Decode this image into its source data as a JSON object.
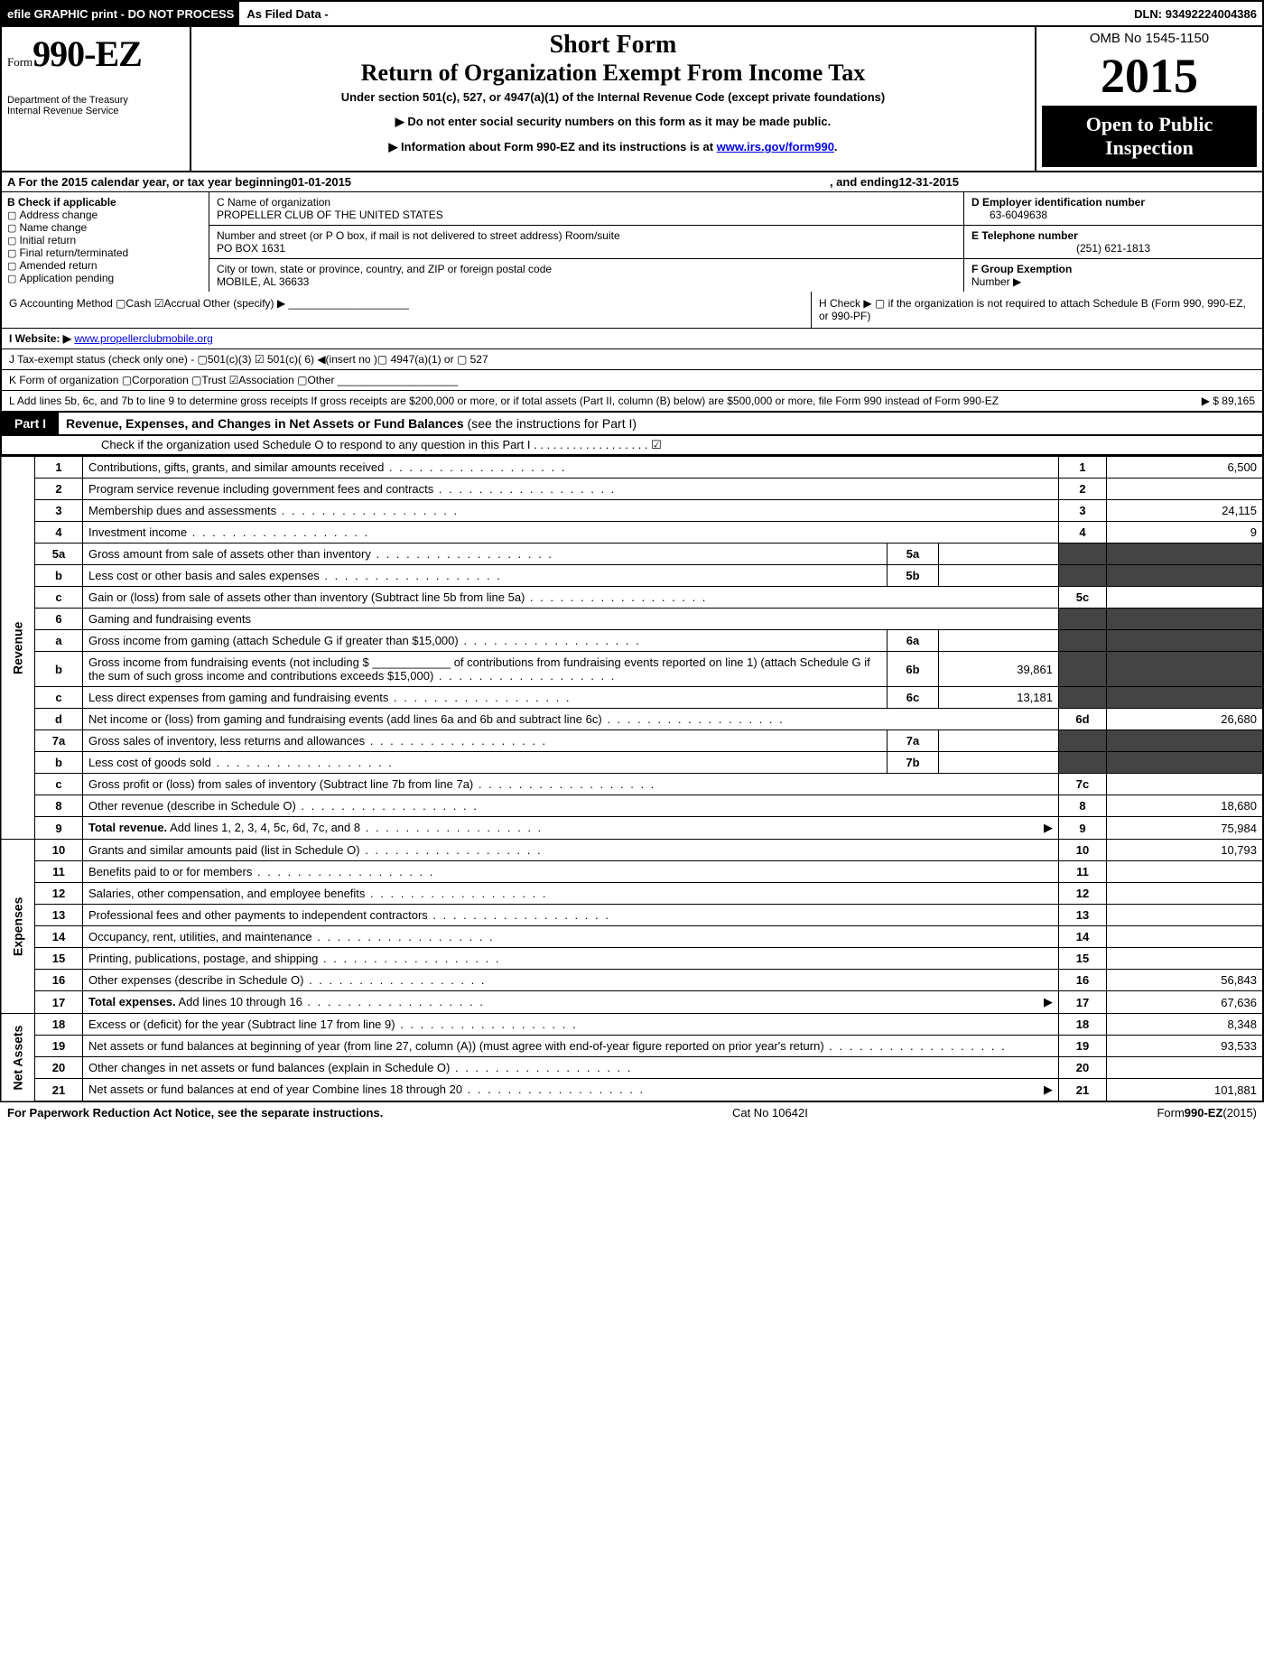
{
  "topbar": {
    "efile": "efile GRAPHIC print - DO NOT PROCESS",
    "asfiled": "As Filed Data -",
    "dln_label": "DLN:",
    "dln": "93492224004386"
  },
  "header": {
    "formword": "Form",
    "formnum": "990-EZ",
    "dept1": "Department of the Treasury",
    "dept2": "Internal Revenue Service",
    "shortform": "Short Form",
    "returnof": "Return of Organization Exempt From Income Tax",
    "under": "Under section 501(c), 527, or 4947(a)(1) of the Internal Revenue Code (except private foundations)",
    "arrow1": "▶ Do not enter social security numbers on this form as it may be made public.",
    "arrow2_pre": "▶ Information about Form 990-EZ and its instructions is at ",
    "arrow2_link": "www.irs.gov/form990",
    "arrow2_post": ".",
    "omb": "OMB No 1545-1150",
    "year": "2015",
    "open1": "Open to Public",
    "open2": "Inspection"
  },
  "rowA": {
    "pre": "A  For the 2015 calendar year, or tax year beginning ",
    "begin": "01-01-2015",
    "mid": ", and ending ",
    "end": "12-31-2015"
  },
  "colB": {
    "title": "B  Check if applicable",
    "items": [
      "Address change",
      "Name change",
      "Initial return",
      "Final return/terminated",
      "Amended return",
      "Application pending"
    ]
  },
  "colC": {
    "c_label": "C Name of organization",
    "c_value": "PROPELLER CLUB OF THE UNITED STATES",
    "street_label": "Number and street (or P O box, if mail is not delivered to street address) Room/suite",
    "street_value": "PO BOX 1631",
    "city_label": "City or town, state or province, country, and ZIP or foreign postal code",
    "city_value": "MOBILE, AL 36633"
  },
  "colDEF": {
    "d_label": "D Employer identification number",
    "d_value": "63-6049638",
    "e_label": "E Telephone number",
    "e_value": "(251) 621-1813",
    "f_label": "F Group Exemption",
    "f_label2": "Number   ▶"
  },
  "rowG": "G Accounting Method   ▢Cash  ☑Accrual  Other (specify) ▶ ____________________",
  "rowH": "H  Check ▶ ▢ if the organization is not required to attach Schedule B (Form 990, 990-EZ, or 990-PF)",
  "rowI_pre": "I Website: ▶ ",
  "rowI_link": "www.propellerclubmobile.org",
  "rowJ": "J Tax-exempt status (check only one) - ▢501(c)(3) ☑ 501(c)( 6) ◀(insert no )▢ 4947(a)(1) or ▢ 527",
  "rowK": "K Form of organization   ▢Corporation  ▢Trust  ☑Association  ▢Other  ____________________",
  "rowL_text": "L Add lines 5b, 6c, and 7b to line 9 to determine gross receipts  If gross receipts are $200,000 or more, or if total assets (Part II, column (B) below) are $500,000 or more, file Form 990 instead of Form 990-EZ",
  "rowL_amt": "▶ $ 89,165",
  "part1": {
    "label": "Part I",
    "title": "Revenue, Expenses, and Changes in Net Assets or Fund Balances",
    "note": " (see the instructions for Part I)",
    "schO": "Check if the organization used Schedule O to respond to any question in this Part I  . . . . . . . . . . . . . . . . . .  ☑"
  },
  "sections": {
    "revenue": "Revenue",
    "expenses": "Expenses",
    "netassets": "Net Assets"
  },
  "lines": {
    "l1": {
      "n": "1",
      "t": "Contributions, gifts, grants, and similar amounts received",
      "r": "1",
      "v": "6,500"
    },
    "l2": {
      "n": "2",
      "t": "Program service revenue including government fees and contracts",
      "r": "2",
      "v": ""
    },
    "l3": {
      "n": "3",
      "t": "Membership dues and assessments",
      "r": "3",
      "v": "24,115"
    },
    "l4": {
      "n": "4",
      "t": "Investment income",
      "r": "4",
      "v": "9"
    },
    "l5a": {
      "n": "5a",
      "t": "Gross amount from sale of assets other than inventory",
      "s": "5a",
      "sv": "",
      "shadeR": true
    },
    "l5b": {
      "n": "b",
      "t": "Less  cost or other basis and sales expenses",
      "s": "5b",
      "sv": "",
      "shadeR": true
    },
    "l5c": {
      "n": "c",
      "t": "Gain or (loss) from sale of assets other than inventory (Subtract line 5b from line 5a)",
      "r": "5c",
      "v": ""
    },
    "l6": {
      "n": "6",
      "t": "Gaming and fundraising events",
      "shadeR": true
    },
    "l6a": {
      "n": "a",
      "t": "Gross income from gaming (attach Schedule G if greater than $15,000)",
      "s": "6a",
      "sv": "",
      "shadeR": true
    },
    "l6b": {
      "n": "b",
      "t": "Gross income from fundraising events (not including $ ____________ of contributions from fundraising events reported on line 1) (attach Schedule G if the sum of such gross income and contributions exceeds $15,000)",
      "s": "6b",
      "sv": "39,861",
      "shadeR": true
    },
    "l6c": {
      "n": "c",
      "t": "Less  direct expenses from gaming and fundraising events",
      "s": "6c",
      "sv": "13,181",
      "shadeR": true
    },
    "l6d": {
      "n": "d",
      "t": "Net income or (loss) from gaming and fundraising events (add lines 6a and 6b and subtract line 6c)",
      "r": "6d",
      "v": "26,680"
    },
    "l7a": {
      "n": "7a",
      "t": "Gross sales of inventory, less returns and allowances",
      "s": "7a",
      "sv": "",
      "shadeR": true
    },
    "l7b": {
      "n": "b",
      "t": "Less  cost of goods sold",
      "s": "7b",
      "sv": "",
      "shadeR": true
    },
    "l7c": {
      "n": "c",
      "t": "Gross profit or (loss) from sales of inventory (Subtract line 7b from line 7a)",
      "r": "7c",
      "v": ""
    },
    "l8": {
      "n": "8",
      "t": "Other revenue (describe in Schedule O)",
      "r": "8",
      "v": "18,680"
    },
    "l9": {
      "n": "9",
      "t": "Total revenue. Add lines 1, 2, 3, 4, 5c, 6d, 7c, and 8",
      "tri": true,
      "r": "9",
      "v": "75,984",
      "bold": true
    },
    "l10": {
      "n": "10",
      "t": "Grants and similar amounts paid (list in Schedule O)",
      "r": "10",
      "v": "10,793"
    },
    "l11": {
      "n": "11",
      "t": "Benefits paid to or for members",
      "r": "11",
      "v": ""
    },
    "l12": {
      "n": "12",
      "t": "Salaries, other compensation, and employee benefits",
      "r": "12",
      "v": ""
    },
    "l13": {
      "n": "13",
      "t": "Professional fees and other payments to independent contractors",
      "r": "13",
      "v": ""
    },
    "l14": {
      "n": "14",
      "t": "Occupancy, rent, utilities, and maintenance",
      "r": "14",
      "v": ""
    },
    "l15": {
      "n": "15",
      "t": "Printing, publications, postage, and shipping",
      "r": "15",
      "v": ""
    },
    "l16": {
      "n": "16",
      "t": "Other expenses (describe in Schedule O)",
      "r": "16",
      "v": "56,843"
    },
    "l17": {
      "n": "17",
      "t": "Total expenses. Add lines 10 through 16",
      "tri": true,
      "r": "17",
      "v": "67,636",
      "bold": true
    },
    "l18": {
      "n": "18",
      "t": "Excess or (deficit) for the year (Subtract line 17 from line 9)",
      "r": "18",
      "v": "8,348"
    },
    "l19": {
      "n": "19",
      "t": "Net assets or fund balances at beginning of year (from line 27, column (A)) (must agree with end-of-year figure reported on prior year's return)",
      "r": "19",
      "v": "93,533"
    },
    "l20": {
      "n": "20",
      "t": "Other changes in net assets or fund balances (explain in Schedule O)",
      "r": "20",
      "v": ""
    },
    "l21": {
      "n": "21",
      "t": "Net assets or fund balances at end of year  Combine lines 18 through 20",
      "tri": true,
      "r": "21",
      "v": "101,881"
    }
  },
  "footer": {
    "left": "For Paperwork Reduction Act Notice, see the separate instructions.",
    "cat": "Cat No 10642I",
    "right": "Form 990-EZ (2015)"
  },
  "rowspans": {
    "revenue": 15,
    "expenses": 8,
    "netassets": 5
  }
}
